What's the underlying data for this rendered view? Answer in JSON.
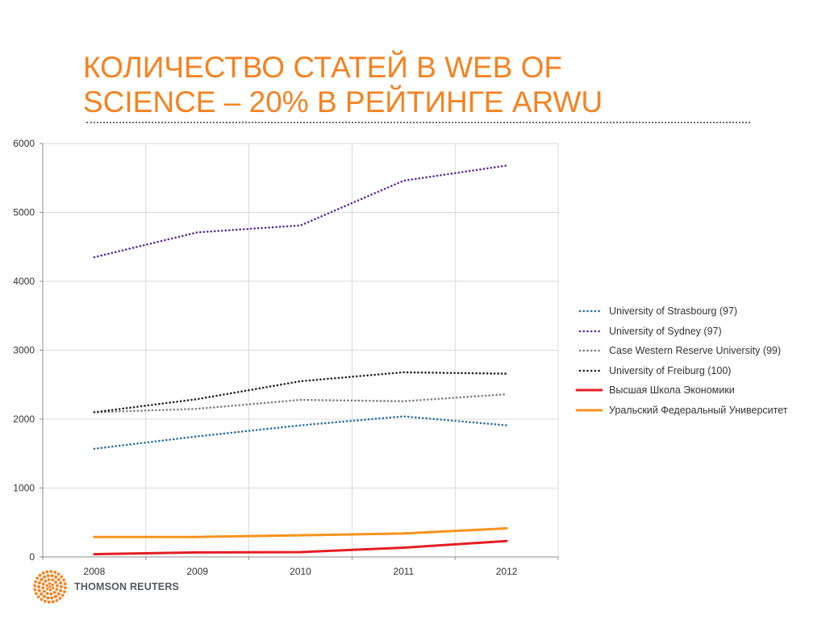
{
  "slide": {
    "title_line1": "КОЛИЧЕСТВО СТАТЕЙ В WEB OF",
    "title_line2": "SCIENCE – 20% В РЕЙТИНГЕ ARWU",
    "accent_color": "#f58220",
    "logo_text": "THOMSON REUTERS",
    "logo_icon": "thomson-reuters-dot-sphere-icon"
  },
  "chart_data": {
    "type": "line",
    "x": [
      "2008",
      "2009",
      "2010",
      "2011",
      "2012"
    ],
    "ylim": [
      0,
      6000
    ],
    "yticks": [
      "0",
      "1000",
      "2000",
      "3000",
      "4000",
      "5000",
      "6000"
    ],
    "grid": true,
    "legend_position": "right",
    "series": [
      {
        "name": "University of Strasbourg (97)",
        "values": [
          1570,
          1750,
          1910,
          2040,
          1910
        ],
        "color": "#2e6e9e",
        "style": "dotted"
      },
      {
        "name": "University of Sydney (97)",
        "values": [
          4350,
          4710,
          4810,
          5460,
          5680
        ],
        "color": "#5b2c91",
        "style": "dotted"
      },
      {
        "name": "Case Western Reserve University (99)",
        "values": [
          2100,
          2150,
          2280,
          2260,
          2360
        ],
        "color": "#7f7f7f",
        "style": "dotted"
      },
      {
        "name": "University of Freiburg (100)",
        "values": [
          2100,
          2290,
          2550,
          2680,
          2660
        ],
        "color": "#262626",
        "style": "dotted"
      },
      {
        "name": "Высшая Школа Экономики",
        "values": [
          40,
          65,
          70,
          135,
          230
        ],
        "color": "#e31e24",
        "style": "solid"
      },
      {
        "name": "Уральский Федеральный Университет",
        "values": [
          290,
          290,
          315,
          340,
          415
        ],
        "color": "#f7931e",
        "style": "solid"
      }
    ]
  }
}
